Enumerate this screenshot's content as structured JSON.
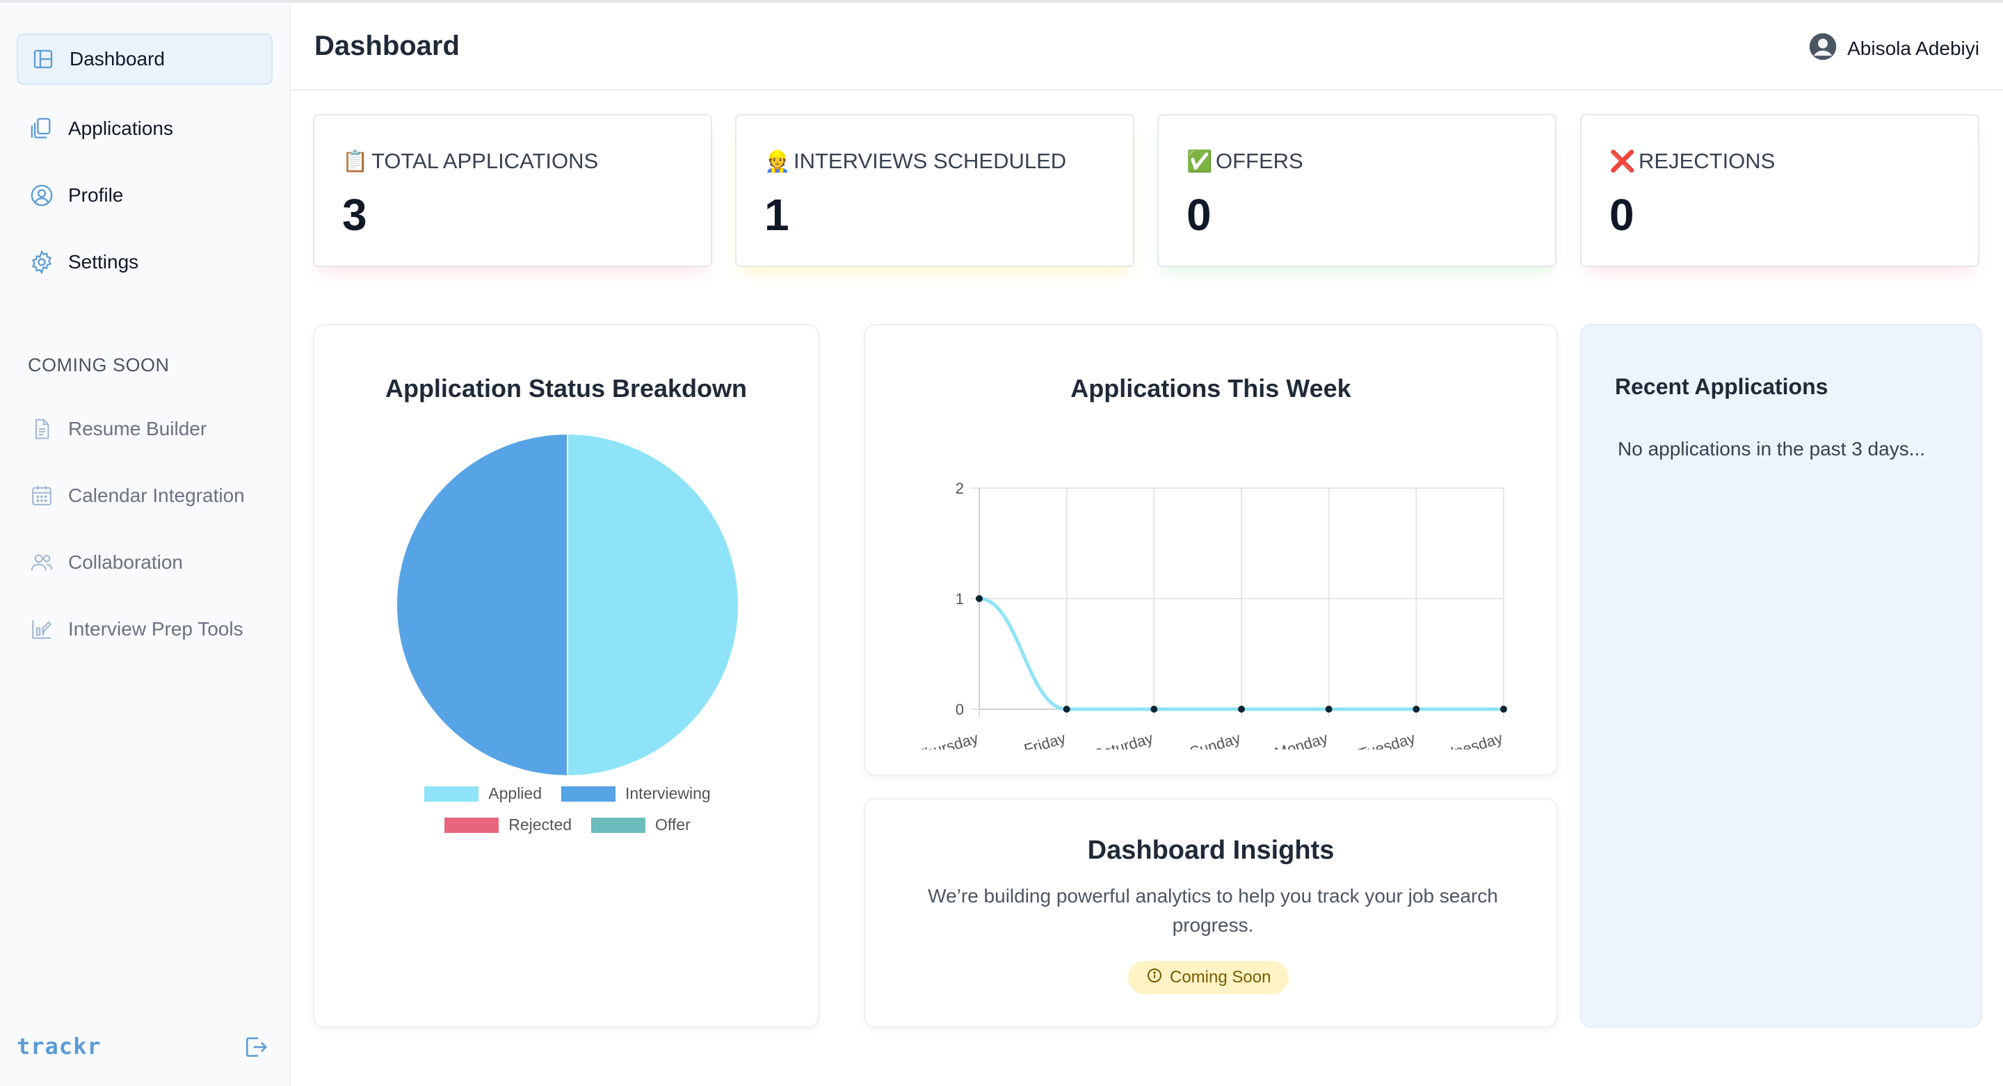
{
  "sidebar": {
    "items": [
      {
        "label": "Dashboard",
        "icon": "layout-icon",
        "active": true
      },
      {
        "label": "Applications",
        "icon": "documents-icon"
      },
      {
        "label": "Profile",
        "icon": "user-circle-icon"
      },
      {
        "label": "Settings",
        "icon": "gear-icon"
      }
    ],
    "coming_soon_heading": "COMING SOON",
    "coming_soon": [
      {
        "label": "Resume Builder",
        "icon": "document-icon"
      },
      {
        "label": "Calendar Integration",
        "icon": "calendar-icon"
      },
      {
        "label": "Collaboration",
        "icon": "users-icon"
      },
      {
        "label": "Interview Prep Tools",
        "icon": "chart-edit-icon"
      }
    ],
    "brand": "trackr",
    "logout_icon": "logout-icon"
  },
  "header": {
    "title": "Dashboard",
    "user_name": "Abisola Adebiyi"
  },
  "stats": [
    {
      "emoji": "📋",
      "label": "TOTAL APPLICATIONS",
      "value": "3",
      "glow": "#fde2e4"
    },
    {
      "emoji": "👷",
      "label": "INTERVIEWS SCHEDULED",
      "value": "1",
      "glow": "#fdf3c4"
    },
    {
      "emoji": "✅",
      "label": "OFFERS",
      "value": "0",
      "glow": "#dcf5e0"
    },
    {
      "emoji": "❌",
      "label": "REJECTIONS",
      "value": "0",
      "glow": "#fde2e4"
    }
  ],
  "status_chart": {
    "title": "Application Status Breakdown"
  },
  "week_chart": {
    "title": "Applications This Week"
  },
  "insights": {
    "title": "Dashboard Insights",
    "body": "We’re building powerful analytics to help you track your job search progress.",
    "badge": "Coming Soon"
  },
  "recent": {
    "title": "Recent Applications",
    "empty": "No applications in the past 3 days..."
  },
  "chart_data": [
    {
      "type": "pie",
      "title": "Application Status Breakdown",
      "categories": [
        "Applied",
        "Interviewing",
        "Rejected",
        "Offer"
      ],
      "values": [
        1,
        1,
        0,
        0
      ],
      "colors": [
        "#8ee3f8",
        "#56a3e6",
        "#e8667d",
        "#6cbcbd"
      ],
      "legend": "bottom"
    },
    {
      "type": "line",
      "title": "Applications This Week",
      "x": [
        "Thursday",
        "Friday",
        "Saturday",
        "Sunday",
        "Monday",
        "Tuesday",
        "Wednesday"
      ],
      "series": [
        {
          "values": [
            1,
            0,
            0,
            0,
            0,
            0,
            0
          ]
        }
      ],
      "ylim": [
        0,
        2
      ],
      "yticks": [
        "0",
        "1",
        "2"
      ],
      "grid": true,
      "color": "#8ee3f8"
    }
  ]
}
